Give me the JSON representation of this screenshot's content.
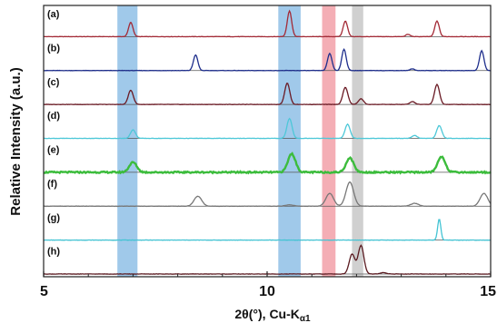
{
  "chart_data": {
    "type": "line",
    "xlabel_main": "2θ(°), Cu-K",
    "xlabel_sub": "α1",
    "ylabel": "Relative Intensity (a.u.)",
    "xlim": [
      5,
      15
    ],
    "xticks": [
      5,
      10,
      15
    ],
    "xtick_labels": [
      "5",
      "10",
      "15"
    ],
    "highlight_bands": [
      {
        "from": 6.65,
        "to": 7.1,
        "color": "#8fbfe6"
      },
      {
        "from": 10.25,
        "to": 10.75,
        "color": "#8fbfe6"
      },
      {
        "from": 11.23,
        "to": 11.53,
        "color": "#f2a0a8"
      },
      {
        "from": 11.9,
        "to": 12.15,
        "color": "#c8c8c8"
      }
    ],
    "series": [
      {
        "label": "(a)",
        "color": "#a32a36",
        "peaks": [
          [
            6.95,
            0.5,
            0.07
          ],
          [
            10.5,
            0.9,
            0.07
          ],
          [
            11.75,
            0.55,
            0.07
          ],
          [
            13.15,
            0.08,
            0.07
          ],
          [
            13.8,
            0.55,
            0.07
          ]
        ]
      },
      {
        "label": "(b)",
        "color": "#1e2e8c",
        "peaks": [
          [
            8.4,
            0.55,
            0.07
          ],
          [
            11.4,
            0.6,
            0.07
          ],
          [
            11.72,
            0.75,
            0.07
          ],
          [
            13.25,
            0.06,
            0.07
          ],
          [
            14.8,
            0.7,
            0.07
          ]
        ]
      },
      {
        "label": "(c)",
        "color": "#6a1a24",
        "peaks": [
          [
            6.95,
            0.5,
            0.08
          ],
          [
            10.45,
            0.75,
            0.08
          ],
          [
            11.75,
            0.6,
            0.08
          ],
          [
            12.1,
            0.2,
            0.08
          ],
          [
            13.25,
            0.1,
            0.08
          ],
          [
            13.8,
            0.7,
            0.08
          ]
        ]
      },
      {
        "label": "(d)",
        "color": "#4dc8d8",
        "peaks": [
          [
            7.0,
            0.3,
            0.08
          ],
          [
            10.5,
            0.7,
            0.08
          ],
          [
            11.8,
            0.5,
            0.08
          ],
          [
            13.3,
            0.1,
            0.08
          ],
          [
            13.85,
            0.45,
            0.08
          ]
        ]
      },
      {
        "label": "(e)",
        "color": "#3cbc3c",
        "peaks": [
          [
            7.0,
            0.35,
            0.12
          ],
          [
            10.55,
            0.65,
            0.12
          ],
          [
            11.85,
            0.5,
            0.12
          ],
          [
            13.9,
            0.55,
            0.12
          ]
        ]
      },
      {
        "label": "(f)",
        "color": "#777777",
        "peaks": [
          [
            8.45,
            0.35,
            0.12
          ],
          [
            10.5,
            0.05,
            0.12
          ],
          [
            11.4,
            0.45,
            0.12
          ],
          [
            11.85,
            0.85,
            0.12
          ],
          [
            13.3,
            0.1,
            0.12
          ],
          [
            14.85,
            0.45,
            0.12
          ]
        ]
      },
      {
        "label": "(g)",
        "color": "#44c4d4",
        "peaks": [
          [
            13.85,
            0.75,
            0.05
          ]
        ]
      },
      {
        "label": "(h)",
        "color": "#5a1a20",
        "peaks": [
          [
            11.9,
            0.7,
            0.09
          ],
          [
            12.1,
            1.0,
            0.09
          ],
          [
            12.6,
            0.05,
            0.09
          ]
        ]
      }
    ]
  }
}
